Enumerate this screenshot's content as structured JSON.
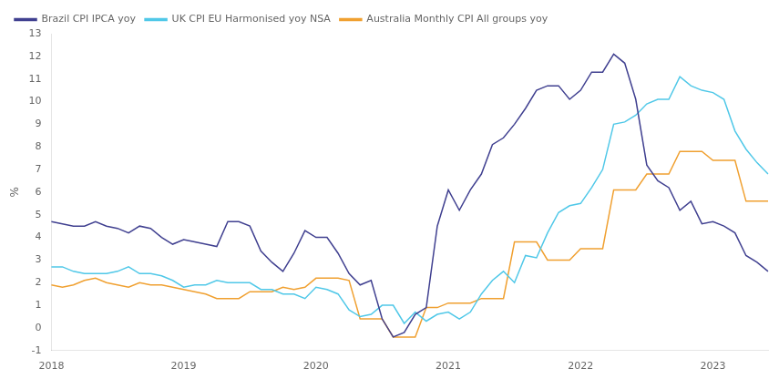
{
  "chart_data": {
    "type": "line",
    "ylabel": "%",
    "categories": [
      "2018",
      null,
      null,
      null,
      null,
      null,
      null,
      null,
      null,
      null,
      null,
      null,
      "2019",
      null,
      null,
      null,
      null,
      null,
      null,
      null,
      null,
      null,
      null,
      null,
      "2020",
      null,
      null,
      null,
      null,
      null,
      null,
      null,
      null,
      null,
      null,
      null,
      "2021",
      null,
      null,
      null,
      null,
      null,
      null,
      null,
      null,
      null,
      null,
      null,
      "2022",
      null,
      null,
      null,
      null,
      null,
      null,
      null,
      null,
      null,
      null,
      null,
      "2023",
      null,
      null,
      null,
      null,
      null
    ],
    "series": [
      {
        "name": "Brazil CPI IPCA yoy",
        "color": "#404090",
        "values": [
          4.7,
          4.6,
          4.5,
          4.5,
          4.7,
          4.5,
          4.4,
          4.2,
          4.5,
          4.4,
          4.0,
          3.7,
          3.9,
          3.8,
          3.7,
          3.6,
          4.7,
          4.7,
          4.5,
          3.4,
          2.9,
          2.5,
          3.3,
          4.3,
          4.0,
          4.0,
          3.3,
          2.4,
          1.9,
          2.1,
          0.4,
          -0.4,
          -0.2,
          0.6,
          0.9,
          4.5,
          6.1,
          5.2,
          6.1,
          6.8,
          8.1,
          8.4,
          9.0,
          9.7,
          10.5,
          10.7,
          10.7,
          10.1,
          10.5,
          11.3,
          11.3,
          12.1,
          11.7,
          10.1,
          7.2,
          6.5,
          6.2,
          5.2,
          5.6,
          4.6,
          4.7,
          4.5,
          4.2,
          3.2,
          2.9,
          2.5
        ]
      },
      {
        "name": "UK CPI EU Harmonised yoy NSA",
        "color": "#50c8e8",
        "values": [
          2.7,
          2.7,
          2.5,
          2.4,
          2.4,
          2.4,
          2.5,
          2.7,
          2.4,
          2.4,
          2.3,
          2.1,
          1.8,
          1.9,
          1.9,
          2.1,
          2.0,
          2.0,
          2.0,
          1.7,
          1.7,
          1.5,
          1.5,
          1.3,
          1.8,
          1.7,
          1.5,
          0.8,
          0.5,
          0.6,
          1.0,
          1.0,
          0.2,
          0.7,
          0.3,
          0.6,
          0.7,
          0.4,
          0.7,
          1.5,
          2.1,
          2.5,
          2.0,
          3.2,
          3.1,
          4.2,
          5.1,
          5.4,
          5.5,
          6.2,
          7.0,
          9.0,
          9.1,
          9.4,
          9.9,
          10.1,
          10.1,
          11.1,
          10.7,
          10.5,
          10.4,
          10.1,
          8.7,
          7.9,
          7.3,
          6.8
        ]
      },
      {
        "name": "Australia Monthly CPI All groups yoy",
        "color": "#f0a030",
        "values": [
          1.9,
          1.8,
          1.9,
          2.1,
          2.2,
          2.0,
          1.9,
          1.8,
          2.0,
          1.9,
          1.9,
          1.8,
          1.7,
          1.6,
          1.5,
          1.3,
          1.3,
          1.3,
          1.6,
          1.6,
          1.6,
          1.8,
          1.7,
          1.8,
          2.2,
          2.2,
          2.2,
          2.1,
          0.4,
          0.4,
          0.4,
          -0.4,
          -0.4,
          -0.4,
          0.9,
          0.9,
          1.1,
          1.1,
          1.1,
          1.3,
          1.3,
          1.3,
          3.8,
          3.8,
          3.8,
          3.0,
          3.0,
          3.0,
          3.5,
          3.5,
          3.5,
          6.1,
          6.1,
          6.1,
          6.8,
          6.8,
          6.8,
          7.8,
          7.8,
          7.8,
          7.4,
          7.4,
          7.4,
          5.6,
          5.6,
          5.6
        ]
      }
    ],
    "ylim": [
      -1,
      13
    ],
    "yticks": [
      -1,
      0,
      1,
      2,
      3,
      4,
      5,
      6,
      7,
      8,
      9,
      10,
      11,
      12,
      13
    ],
    "grid": false,
    "legend": "upper-left"
  }
}
